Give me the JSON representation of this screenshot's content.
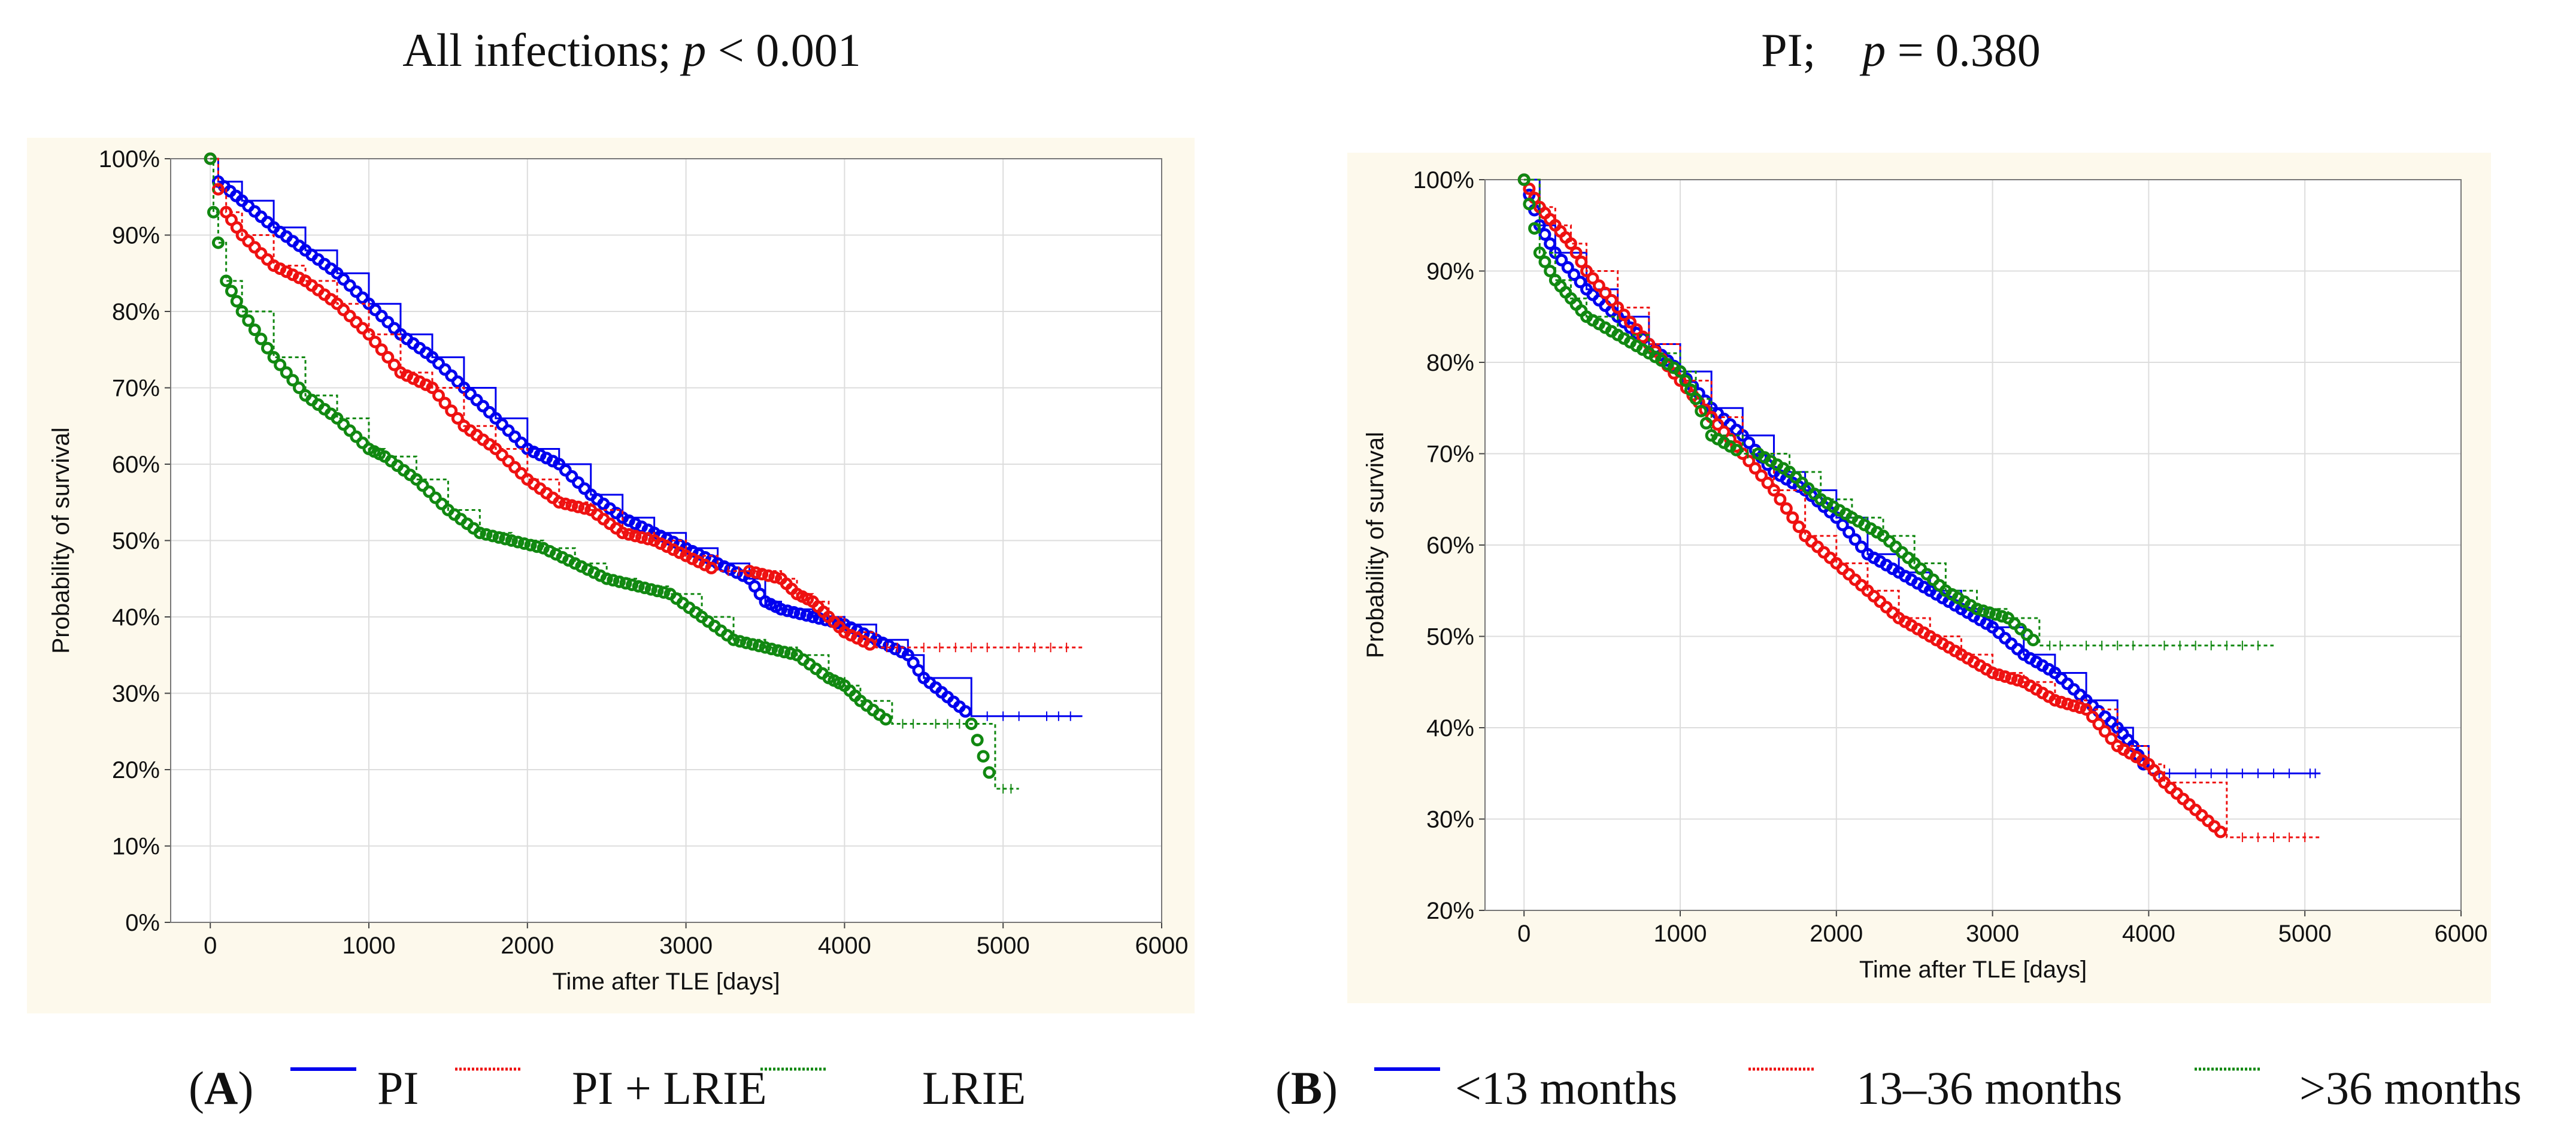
{
  "colors": {
    "blue": "#0000ee",
    "red": "#ee1111",
    "green": "#118811",
    "panel_bg": "#fdf9ec"
  },
  "chart_data": [
    {
      "type": "line",
      "title_prefix": "All infections; ",
      "title_p": "p",
      "title_suffix": " < 0.001",
      "xlabel": "Time after TLE [days]",
      "ylabel": "Probability of survival",
      "xlim": [
        -250,
        6000
      ],
      "ylim": [
        0,
        100
      ],
      "xticks": [
        "0",
        "1000",
        "2000",
        "3000",
        "4000",
        "5000",
        "6000"
      ],
      "yticks": [
        "0%",
        "10%",
        "20%",
        "30%",
        "40%",
        "50%",
        "60%",
        "70%",
        "80%",
        "90%",
        "100%"
      ],
      "ytick_values": [
        0,
        10,
        20,
        30,
        40,
        50,
        60,
        70,
        80,
        90,
        100
      ],
      "xtick_values": [
        0,
        1000,
        2000,
        3000,
        4000,
        5000,
        6000
      ],
      "panel_label": "A",
      "series": [
        {
          "name": "PI",
          "color": "blue",
          "dash": "",
          "x": [
            0,
            50,
            200,
            400,
            600,
            800,
            1000,
            1200,
            1400,
            1600,
            1800,
            2000,
            2200,
            2400,
            2600,
            2800,
            3000,
            3200,
            3400,
            3500,
            3600,
            3800,
            4000,
            4200,
            4400,
            4500,
            4800,
            5200,
            5500
          ],
          "y": [
            100,
            97,
            94.5,
            91,
            88,
            85,
            81,
            77,
            74,
            70,
            66,
            62,
            60,
            56,
            53,
            51,
            49,
            47,
            45,
            42,
            41,
            40,
            39,
            37,
            35,
            32,
            27,
            27,
            27
          ]
        },
        {
          "name": "PI + LRIE",
          "color": "red",
          "dash": "6,5",
          "x": [
            0,
            50,
            100,
            200,
            400,
            600,
            800,
            1000,
            1200,
            1400,
            1600,
            1800,
            2000,
            2200,
            2400,
            2600,
            2800,
            3000,
            3200,
            3400,
            3600,
            3700,
            3800,
            3900,
            4000,
            4200,
            4400,
            5000,
            5500
          ],
          "y": [
            100,
            96,
            93,
            90,
            86,
            84,
            81,
            77,
            72,
            70,
            65,
            62,
            58,
            55,
            54,
            51,
            50,
            48,
            46,
            46,
            45,
            43,
            42,
            40,
            38,
            36,
            36,
            36,
            36
          ]
        },
        {
          "name": "LRIE",
          "color": "green",
          "dash": "6,5",
          "x": [
            0,
            20,
            50,
            100,
            200,
            400,
            600,
            800,
            1000,
            1100,
            1300,
            1500,
            1700,
            1900,
            2100,
            2300,
            2500,
            2700,
            2900,
            3100,
            3300,
            3500,
            3700,
            3900,
            4000,
            4100,
            4300,
            4500,
            4800,
            4950,
            5100
          ],
          "y": [
            100,
            93,
            89,
            84,
            80,
            74,
            69,
            66,
            62,
            61,
            58,
            54,
            51,
            50,
            49,
            47,
            45,
            44,
            43,
            40,
            37,
            36,
            35,
            32,
            31,
            29,
            26,
            26,
            26,
            17.5,
            17.5
          ]
        }
      ]
    },
    {
      "type": "line",
      "title_prefix": "PI;    ",
      "title_p": "p",
      "title_suffix": " = 0.380",
      "xlabel": "Time after TLE [days]",
      "ylabel": "Probability of survival",
      "xlim": [
        -250,
        6000
      ],
      "ylim": [
        20,
        100
      ],
      "xticks": [
        "0",
        "1000",
        "2000",
        "3000",
        "4000",
        "5000",
        "6000"
      ],
      "yticks": [
        "20%",
        "30%",
        "40%",
        "50%",
        "60%",
        "70%",
        "80%",
        "90%",
        "100%"
      ],
      "ytick_values": [
        20,
        30,
        40,
        50,
        60,
        70,
        80,
        90,
        100
      ],
      "xtick_values": [
        0,
        1000,
        2000,
        3000,
        4000,
        5000,
        6000
      ],
      "panel_label": "B",
      "series": [
        {
          "name": "<13 months",
          "color": "blue",
          "dash": "",
          "x": [
            0,
            100,
            200,
            400,
            600,
            800,
            1000,
            1200,
            1400,
            1600,
            1800,
            2000,
            2200,
            2400,
            2600,
            2800,
            3000,
            3200,
            3400,
            3600,
            3800,
            3900,
            4000,
            4200,
            5000,
            5100
          ],
          "y": [
            100,
            95,
            92,
            88,
            85,
            82,
            79,
            75,
            72,
            68,
            66,
            63,
            59,
            57,
            55,
            53,
            51,
            48,
            46,
            43,
            40,
            38,
            35,
            35,
            35,
            35
          ]
        },
        {
          "name": "13–36 months",
          "color": "red",
          "dash": "6,5",
          "x": [
            0,
            100,
            200,
            300,
            400,
            600,
            800,
            1000,
            1200,
            1400,
            1600,
            1800,
            2000,
            2200,
            2400,
            2600,
            2800,
            3000,
            3200,
            3400,
            3600,
            3800,
            4000,
            4100,
            4500,
            5100
          ],
          "y": [
            100,
            97,
            95,
            93,
            90,
            86,
            82,
            78,
            74,
            70,
            66,
            61,
            58,
            55,
            52,
            50,
            48,
            46,
            45,
            43,
            42,
            38,
            36,
            34,
            28,
            28
          ]
        },
        {
          "name": ">36 months",
          "color": "green",
          "dash": "6,5",
          "x": [
            0,
            100,
            200,
            300,
            400,
            600,
            800,
            1000,
            1100,
            1200,
            1400,
            1500,
            1700,
            1900,
            2100,
            2300,
            2500,
            2700,
            2900,
            3100,
            3300,
            3500,
            4000,
            4800
          ],
          "y": [
            100,
            92,
            89,
            87,
            85,
            83,
            81,
            79,
            76,
            72,
            70,
            70,
            68,
            65,
            63,
            61,
            58,
            55,
            53,
            52,
            49,
            49,
            49,
            49
          ]
        }
      ]
    }
  ],
  "legend_a": {
    "label_open": "(",
    "label_letter": "A",
    "label_close": ")",
    "items": [
      "PI",
      "PI + LRIE",
      "LRIE"
    ]
  },
  "legend_b": {
    "label_open": "(",
    "label_letter": "B",
    "label_close": ")",
    "items": [
      "<13 months",
      "13–36 months",
      ">36 months"
    ]
  }
}
